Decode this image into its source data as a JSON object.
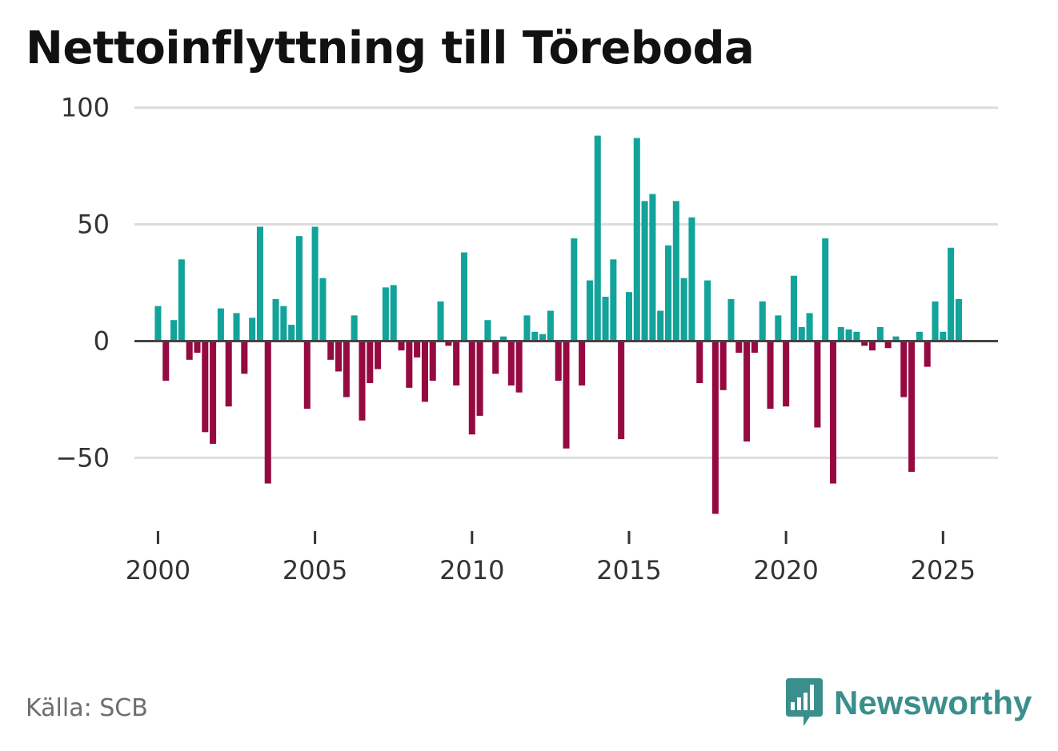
{
  "title": "Nettoinflyttning till Töreboda",
  "source": "Källa: SCB",
  "brand": {
    "name": "Newsworthy",
    "icon": "newsworthy-logo-icon",
    "color": "#3a8f8c"
  },
  "colors": {
    "positive": "#12a39a",
    "negative": "#950a40",
    "grid": "#dddddd",
    "zero": "#444444"
  },
  "chart_data": {
    "type": "bar",
    "title": "Nettoinflyttning till Töreboda",
    "xlabel": "",
    "ylabel": "",
    "ylim": [
      -80,
      105
    ],
    "xlim": [
      1999.25,
      2026.75
    ],
    "yticks": [
      100,
      50,
      0,
      -50
    ],
    "ytick_labels": [
      "100",
      "50",
      "0",
      "−50"
    ],
    "xticks": [
      2000,
      2005,
      2010,
      2015,
      2020,
      2025
    ],
    "xtick_labels": [
      "2000",
      "2005",
      "2010",
      "2015",
      "2020",
      "2025"
    ],
    "grid": true,
    "x_start": 2000,
    "period": "quarter",
    "values": [
      15,
      -17,
      9,
      35,
      -8,
      -5,
      -39,
      -44,
      14,
      -28,
      12,
      -14,
      10,
      49,
      -61,
      18,
      15,
      7,
      45,
      -29,
      49,
      27,
      -8,
      -13,
      -24,
      11,
      -34,
      -18,
      -12,
      23,
      24,
      -4,
      -20,
      -7,
      -26,
      -17,
      17,
      -2,
      -19,
      38,
      -40,
      -32,
      9,
      -14,
      2,
      -19,
      -22,
      11,
      4,
      3,
      13,
      -17,
      -46,
      44,
      -19,
      26,
      88,
      19,
      35,
      -42,
      21,
      87,
      60,
      63,
      13,
      41,
      60,
      27,
      53,
      -18,
      26,
      -74,
      -21,
      18,
      -5,
      -43,
      -5,
      17,
      -29,
      11,
      -28,
      28,
      6,
      12,
      -37,
      44,
      -61,
      6,
      5,
      4,
      -2,
      -4,
      6,
      -3,
      2,
      -24,
      -56,
      4,
      -11,
      17,
      4,
      40,
      18
    ]
  }
}
